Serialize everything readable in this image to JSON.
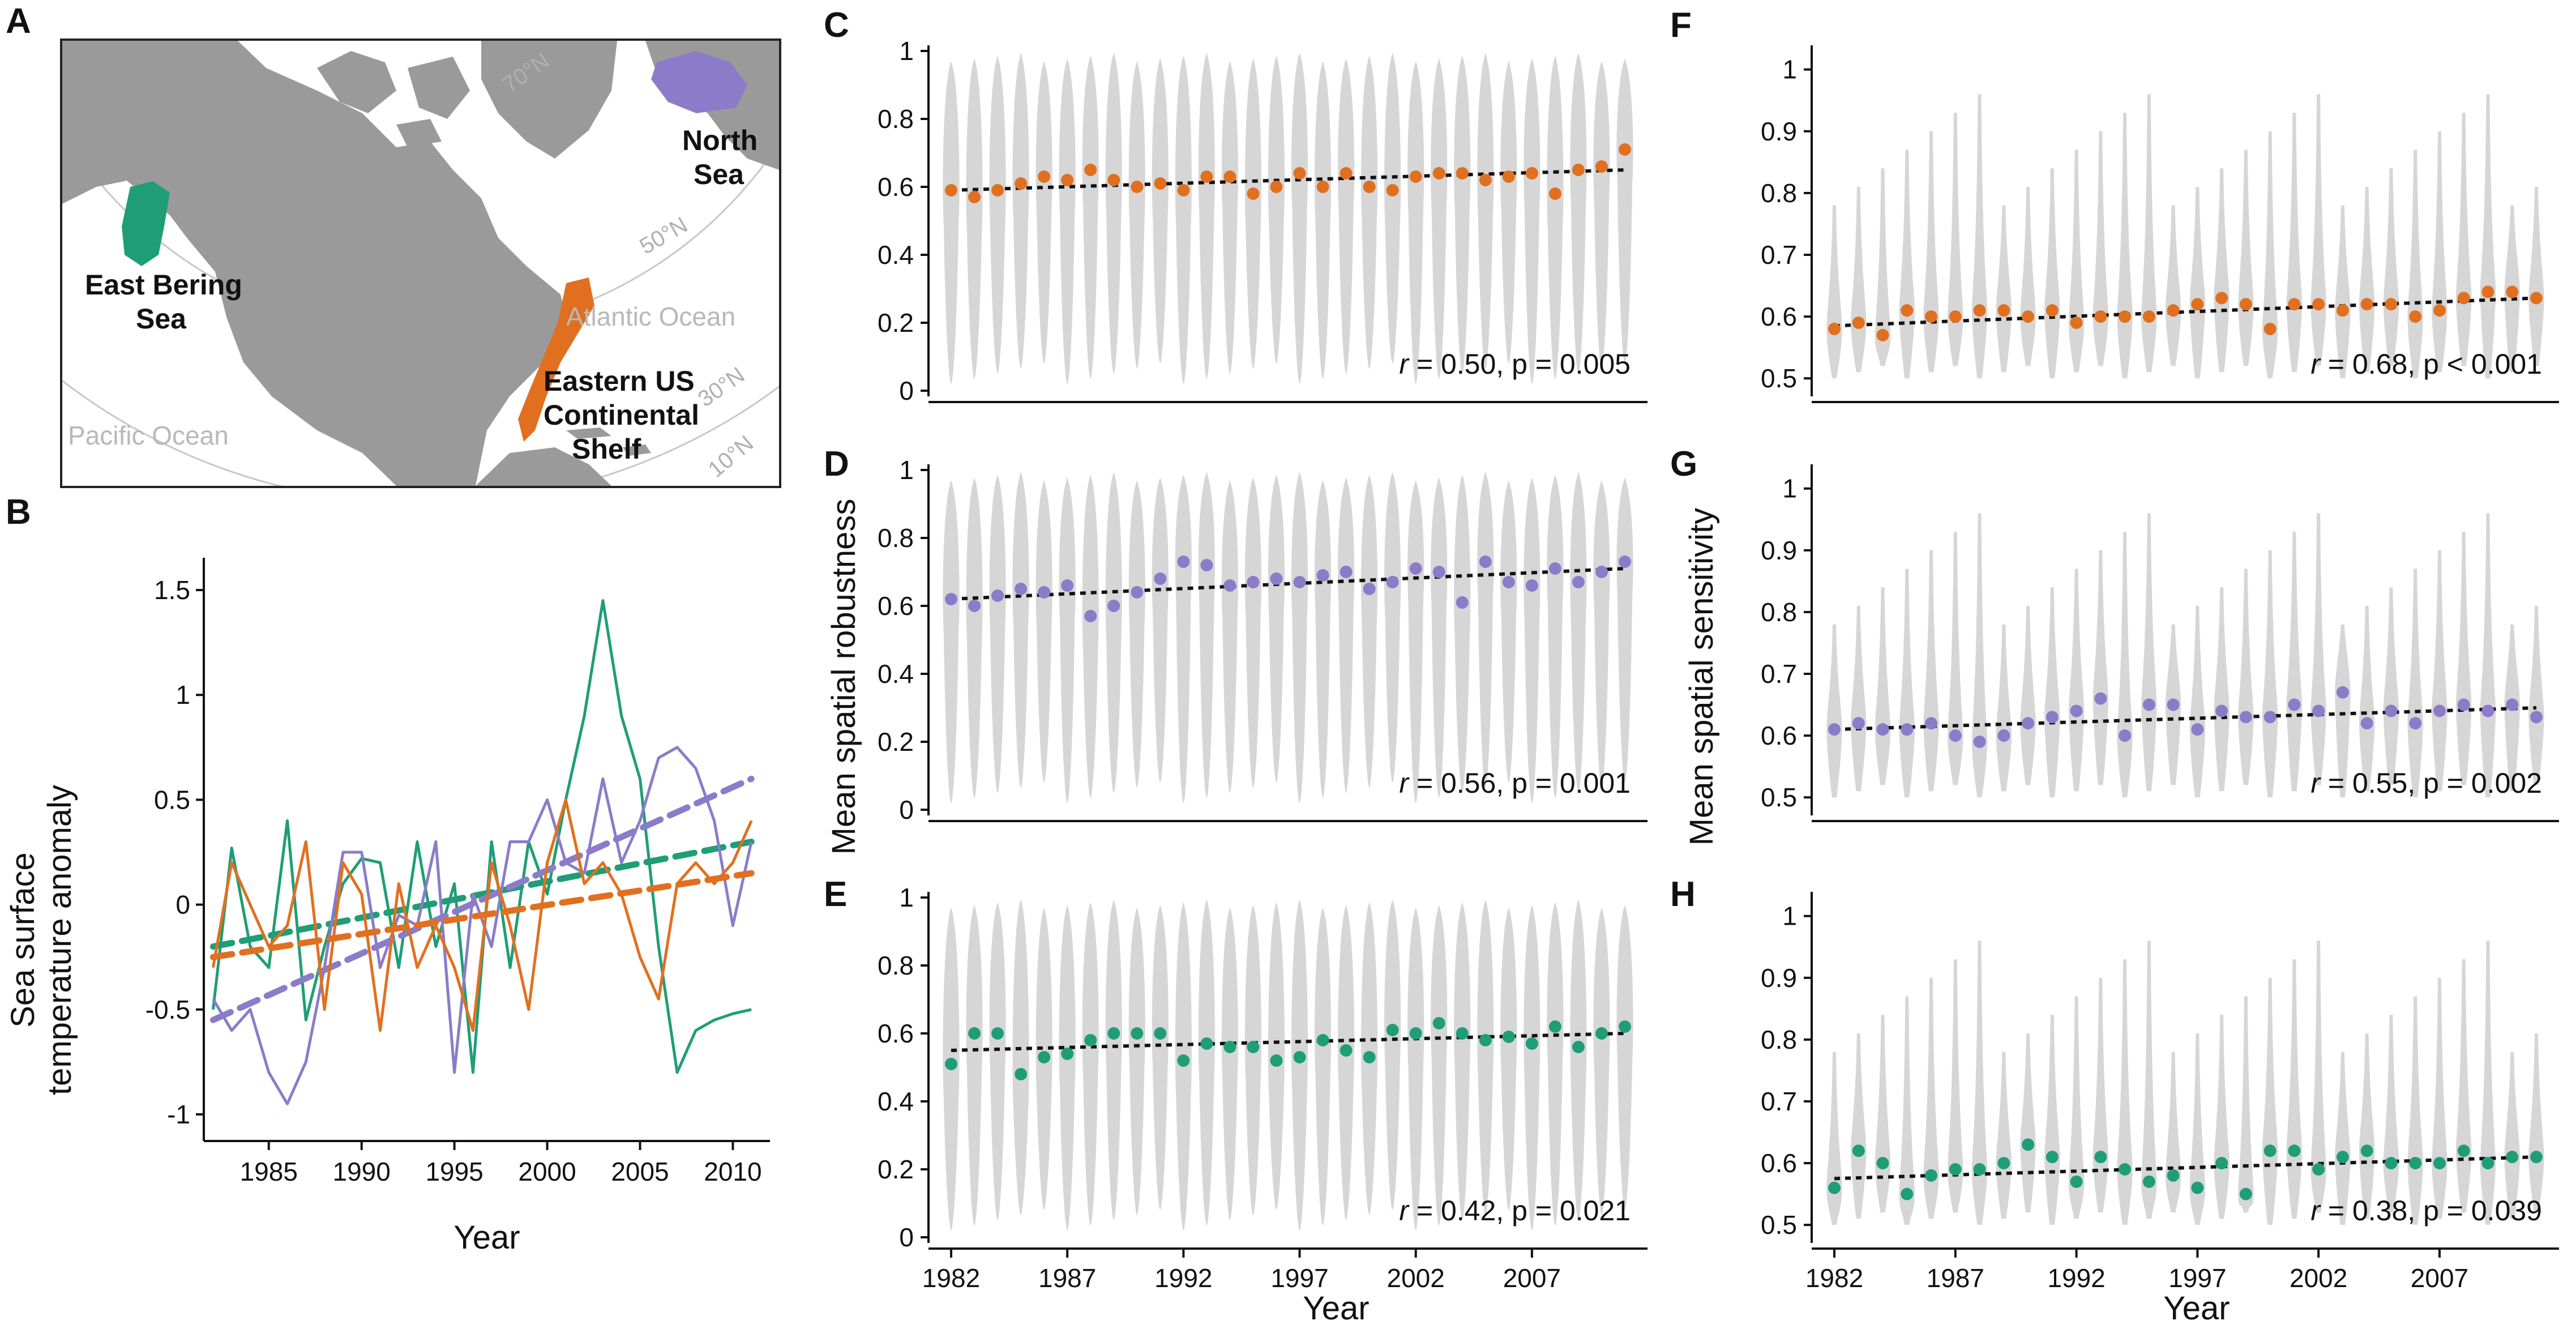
{
  "panel_letters": {
    "A": "A",
    "B": "B",
    "C": "C",
    "D": "D",
    "E": "E",
    "F": "F",
    "G": "G",
    "H": "H"
  },
  "colors": {
    "orange": "#e07020",
    "purple": "#8a7cc9",
    "green": "#1f9e76",
    "violin": "#d6d6d6",
    "trend": "#111111",
    "land": "#9a9a9a",
    "grid": "#c8c8c8"
  },
  "map": {
    "regions": [
      {
        "id": "east-bering",
        "label_lines": [
          "East Bering",
          "Sea"
        ],
        "color": "#1f9e76"
      },
      {
        "id": "north-sea",
        "label_lines": [
          "North",
          "Sea"
        ],
        "color": "#8a7cc9"
      },
      {
        "id": "eastern-us",
        "label_lines": [
          "Eastern US",
          "Continental",
          "Shelf"
        ],
        "color": "#e07020"
      }
    ],
    "oceans": [
      "Atlantic Ocean",
      "Pacific Ocean"
    ],
    "latitudes": [
      "70°N",
      "50°N",
      "30°N",
      "10°N"
    ]
  },
  "chart_data": [
    {
      "panel": "B",
      "type": "line",
      "xlabel": "Year",
      "ylabel_lines": [
        "Sea surface",
        "temperature anomaly"
      ],
      "xlim": [
        1981.5,
        2012
      ],
      "ylim": [
        -1.1,
        1.6
      ],
      "xticks": [
        1985,
        1990,
        1995,
        2000,
        2005,
        2010
      ],
      "yticks": [
        -1,
        -0.5,
        0,
        0.5,
        1,
        1.5
      ],
      "ytick_labels": [
        "-1",
        "-0.5",
        "0",
        "0.5",
        "1",
        "1.5"
      ],
      "x": [
        1982,
        1983,
        1984,
        1985,
        1986,
        1987,
        1988,
        1989,
        1990,
        1991,
        1992,
        1993,
        1994,
        1995,
        1996,
        1997,
        1998,
        1999,
        2000,
        2001,
        2002,
        2003,
        2004,
        2005,
        2006,
        2007,
        2008,
        2009,
        2010,
        2011
      ],
      "series": [
        {
          "name": "East Bering Sea",
          "color": "#1f9e76",
          "values": [
            -0.5,
            0.27,
            -0.2,
            -0.3,
            0.4,
            -0.55,
            -0.2,
            0.1,
            0.22,
            0.2,
            -0.3,
            0.3,
            -0.2,
            0.1,
            -0.8,
            0.3,
            -0.3,
            0.3,
            0.05,
            0.5,
            0.9,
            1.45,
            0.9,
            0.6,
            -0.2,
            -0.8,
            -0.6,
            -0.55,
            -0.52,
            -0.5
          ],
          "trend": [
            -0.2,
            0.3
          ]
        },
        {
          "name": "North Sea",
          "color": "#8a7cc9",
          "values": [
            -0.45,
            -0.6,
            -0.5,
            -0.8,
            -0.95,
            -0.75,
            -0.3,
            0.25,
            0.25,
            -0.3,
            -0.05,
            -0.1,
            0.3,
            -0.8,
            0.05,
            -0.2,
            0.3,
            0.3,
            0.5,
            0.2,
            0.15,
            0.6,
            0.2,
            0.4,
            0.7,
            0.75,
            0.65,
            0.4,
            -0.1,
            0.3
          ],
          "trend": [
            -0.55,
            0.6
          ]
        },
        {
          "name": "Eastern US Continental Shelf",
          "color": "#e07020",
          "values": [
            -0.3,
            0.2,
            0.0,
            -0.2,
            -0.1,
            0.3,
            -0.5,
            0.2,
            0.05,
            -0.6,
            0.1,
            -0.3,
            -0.1,
            -0.3,
            -0.6,
            0.2,
            -0.1,
            -0.5,
            0.2,
            0.5,
            0.1,
            0.2,
            0.05,
            -0.25,
            -0.45,
            0.1,
            0.2,
            0.1,
            0.2,
            0.4
          ],
          "trend": [
            -0.25,
            0.15
          ]
        }
      ]
    },
    {
      "panel": "C",
      "type": "violin",
      "series_color": "#e07020",
      "ylim": [
        0,
        1
      ],
      "yticks": [
        0,
        0.2,
        0.4,
        0.6,
        0.8,
        1
      ],
      "ytick_labels": [
        "0",
        "0.2",
        "0.4",
        "0.6",
        "0.8",
        "1"
      ],
      "x": [
        1982,
        1983,
        1984,
        1985,
        1986,
        1987,
        1988,
        1989,
        1990,
        1991,
        1992,
        1993,
        1994,
        1995,
        1996,
        1997,
        1998,
        1999,
        2000,
        2001,
        2002,
        2003,
        2004,
        2005,
        2006,
        2007,
        2008,
        2009,
        2010,
        2011
      ],
      "means": [
        0.59,
        0.57,
        0.59,
        0.61,
        0.63,
        0.62,
        0.65,
        0.62,
        0.6,
        0.61,
        0.59,
        0.63,
        0.63,
        0.58,
        0.6,
        0.64,
        0.6,
        0.64,
        0.6,
        0.59,
        0.63,
        0.64,
        0.64,
        0.62,
        0.63,
        0.64,
        0.58,
        0.65,
        0.66,
        0.71
      ],
      "trend": [
        0.59,
        0.65
      ],
      "annotation": {
        "r": "0.50",
        "p": "p = 0.005"
      }
    },
    {
      "panel": "D",
      "type": "violin",
      "series_color": "#8a7cc9",
      "ylim": [
        0,
        1
      ],
      "yticks": [
        0,
        0.2,
        0.4,
        0.6,
        0.8,
        1
      ],
      "ytick_labels": [
        "0",
        "0.2",
        "0.4",
        "0.6",
        "0.8",
        "1"
      ],
      "x": [
        1982,
        1983,
        1984,
        1985,
        1986,
        1987,
        1988,
        1989,
        1990,
        1991,
        1992,
        1993,
        1994,
        1995,
        1996,
        1997,
        1998,
        1999,
        2000,
        2001,
        2002,
        2003,
        2004,
        2005,
        2006,
        2007,
        2008,
        2009,
        2010,
        2011
      ],
      "means": [
        0.62,
        0.6,
        0.63,
        0.65,
        0.64,
        0.66,
        0.57,
        0.6,
        0.64,
        0.68,
        0.73,
        0.72,
        0.66,
        0.67,
        0.68,
        0.67,
        0.69,
        0.7,
        0.65,
        0.67,
        0.71,
        0.7,
        0.61,
        0.73,
        0.67,
        0.66,
        0.71,
        0.67,
        0.7,
        0.73
      ],
      "trend": [
        0.62,
        0.71
      ],
      "annotation": {
        "r": "0.56",
        "p": "p = 0.001"
      }
    },
    {
      "panel": "E",
      "type": "violin",
      "series_color": "#1f9e76",
      "ylim": [
        0,
        1
      ],
      "yticks": [
        0,
        0.2,
        0.4,
        0.6,
        0.8,
        1
      ],
      "ytick_labels": [
        "0",
        "0.2",
        "0.4",
        "0.6",
        "0.8",
        "1"
      ],
      "x": [
        1982,
        1983,
        1984,
        1985,
        1986,
        1987,
        1988,
        1989,
        1990,
        1991,
        1992,
        1993,
        1994,
        1995,
        1996,
        1997,
        1998,
        1999,
        2000,
        2001,
        2002,
        2003,
        2004,
        2005,
        2006,
        2007,
        2008,
        2009,
        2010,
        2011
      ],
      "means": [
        0.51,
        0.6,
        0.6,
        0.48,
        0.53,
        0.54,
        0.58,
        0.6,
        0.6,
        0.6,
        0.52,
        0.57,
        0.56,
        0.56,
        0.52,
        0.53,
        0.58,
        0.55,
        0.53,
        0.61,
        0.6,
        0.63,
        0.6,
        0.58,
        0.59,
        0.57,
        0.62,
        0.56,
        0.6,
        0.62
      ],
      "trend": [
        0.55,
        0.6
      ],
      "annotation": {
        "r": "0.42",
        "p": "p = 0.021"
      }
    },
    {
      "panel": "F",
      "type": "violin",
      "series_color": "#e07020",
      "ylim": [
        0.48,
        1.03
      ],
      "yticks": [
        0.5,
        0.6,
        0.7,
        0.8,
        0.9,
        1
      ],
      "ytick_labels": [
        "0.5",
        "0.6",
        "0.7",
        "0.8",
        "0.9",
        "1"
      ],
      "x": [
        1982,
        1983,
        1984,
        1985,
        1986,
        1987,
        1988,
        1989,
        1990,
        1991,
        1992,
        1993,
        1994,
        1995,
        1996,
        1997,
        1998,
        1999,
        2000,
        2001,
        2002,
        2003,
        2004,
        2005,
        2006,
        2007,
        2008,
        2009,
        2010,
        2011
      ],
      "means": [
        0.58,
        0.59,
        0.57,
        0.61,
        0.6,
        0.6,
        0.61,
        0.61,
        0.6,
        0.61,
        0.59,
        0.6,
        0.6,
        0.6,
        0.61,
        0.62,
        0.63,
        0.62,
        0.58,
        0.62,
        0.62,
        0.61,
        0.62,
        0.62,
        0.6,
        0.61,
        0.63,
        0.64,
        0.64,
        0.63
      ],
      "trend": [
        0.585,
        0.63
      ],
      "annotation": {
        "r": "0.68",
        "p": "p < 0.001"
      }
    },
    {
      "panel": "G",
      "type": "violin",
      "series_color": "#8a7cc9",
      "ylim": [
        0.48,
        1.03
      ],
      "yticks": [
        0.5,
        0.6,
        0.7,
        0.8,
        0.9,
        1
      ],
      "ytick_labels": [
        "0.5",
        "0.6",
        "0.7",
        "0.8",
        "0.9",
        "1"
      ],
      "x": [
        1982,
        1983,
        1984,
        1985,
        1986,
        1987,
        1988,
        1989,
        1990,
        1991,
        1992,
        1993,
        1994,
        1995,
        1996,
        1997,
        1998,
        1999,
        2000,
        2001,
        2002,
        2003,
        2004,
        2005,
        2006,
        2007,
        2008,
        2009,
        2010,
        2011
      ],
      "means": [
        0.61,
        0.62,
        0.61,
        0.61,
        0.62,
        0.6,
        0.59,
        0.6,
        0.62,
        0.63,
        0.64,
        0.66,
        0.6,
        0.65,
        0.65,
        0.61,
        0.64,
        0.63,
        0.63,
        0.65,
        0.64,
        0.67,
        0.62,
        0.64,
        0.62,
        0.64,
        0.65,
        0.64,
        0.65,
        0.63
      ],
      "trend": [
        0.61,
        0.645
      ],
      "annotation": {
        "r": "0.55",
        "p": "p = 0.002"
      }
    },
    {
      "panel": "H",
      "type": "violin",
      "series_color": "#1f9e76",
      "ylim": [
        0.48,
        1.03
      ],
      "yticks": [
        0.5,
        0.6,
        0.7,
        0.8,
        0.9,
        1
      ],
      "ytick_labels": [
        "0.5",
        "0.6",
        "0.7",
        "0.8",
        "0.9",
        "1"
      ],
      "x": [
        1982,
        1983,
        1984,
        1985,
        1986,
        1987,
        1988,
        1989,
        1990,
        1991,
        1992,
        1993,
        1994,
        1995,
        1996,
        1997,
        1998,
        1999,
        2000,
        2001,
        2002,
        2003,
        2004,
        2005,
        2006,
        2007,
        2008,
        2009,
        2010,
        2011
      ],
      "means": [
        0.56,
        0.62,
        0.6,
        0.55,
        0.58,
        0.59,
        0.59,
        0.6,
        0.63,
        0.61,
        0.57,
        0.61,
        0.59,
        0.57,
        0.58,
        0.56,
        0.6,
        0.55,
        0.62,
        0.62,
        0.59,
        0.61,
        0.62,
        0.6,
        0.6,
        0.6,
        0.62,
        0.6,
        0.61,
        0.61
      ],
      "trend": [
        0.575,
        0.61
      ],
      "annotation": {
        "r": "0.38",
        "p": "p = 0.039"
      }
    }
  ],
  "axes_text": {
    "violin_xticks": [
      1982,
      1987,
      1992,
      1997,
      2002,
      2007
    ],
    "middle_xlabel": "Year",
    "right_xlabel": "Year",
    "robustness_ylabel": "Mean spatial robustness",
    "sensitivity_ylabel": "Mean spatial sensitivity",
    "r_symbol": "r",
    "r_equals": " = "
  }
}
